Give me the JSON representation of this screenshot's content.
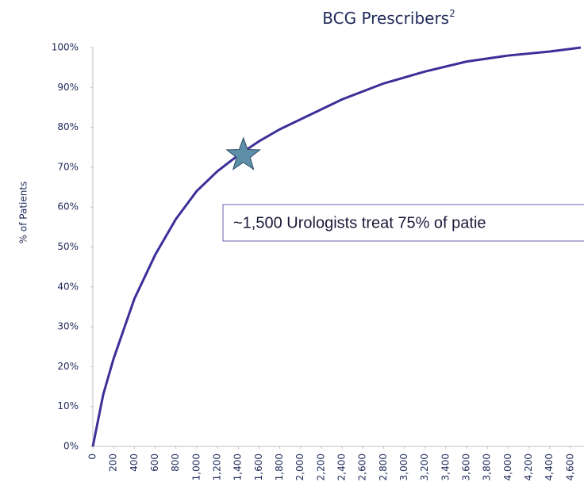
{
  "chart_data": {
    "type": "line",
    "title": "BCG Prescribers",
    "title_note": "2",
    "y_label": "% of Patients",
    "annotation": "~1,500 Urologists treat 75% of patie",
    "x": [
      0,
      100,
      200,
      400,
      600,
      800,
      1000,
      1200,
      1400,
      1600,
      1800,
      2000,
      2400,
      2800,
      3200,
      3600,
      4000,
      4400,
      4700
    ],
    "series": [
      {
        "name": "BCG Prescribers",
        "color": "#3b2f98",
        "values": [
          0,
          13,
          22,
          37,
          48,
          57,
          64,
          69,
          73,
          76.5,
          79.5,
          82,
          87,
          91,
          94,
          96.5,
          98,
          99,
          100
        ]
      }
    ],
    "highlight": {
      "x": 1450,
      "y": 73,
      "color": "#5e8fa8"
    },
    "xlim": [
      0,
      4700
    ],
    "ylim": [
      0,
      100
    ],
    "xticks": [
      0,
      200,
      400,
      600,
      800,
      {
        "value": 1000,
        "label": "1,000"
      },
      {
        "value": 1200,
        "label": "1,200"
      },
      {
        "value": 1400,
        "label": "1,400"
      },
      {
        "value": 1600,
        "label": "1,600"
      },
      {
        "value": 1800,
        "label": "1,800"
      },
      {
        "value": 2000,
        "label": "2,000"
      },
      {
        "value": 2200,
        "label": "2,200"
      },
      {
        "value": 2400,
        "label": "2,400"
      },
      {
        "value": 2600,
        "label": "2,600"
      },
      {
        "value": 2800,
        "label": "2,800"
      },
      {
        "value": 3000,
        "label": "3,000"
      },
      {
        "value": 3200,
        "label": "3,200"
      },
      {
        "value": 3400,
        "label": "3,400"
      },
      {
        "value": 3600,
        "label": "3,600"
      },
      {
        "value": 3800,
        "label": "3,800"
      },
      {
        "value": 4000,
        "label": "4,000"
      },
      {
        "value": 4200,
        "label": "4,200"
      },
      {
        "value": 4400,
        "label": "4,400"
      },
      {
        "value": 4600,
        "label": "4,600"
      }
    ],
    "yticks": [
      {
        "value": 0,
        "label": "0%"
      },
      {
        "value": 10,
        "label": "10%"
      },
      {
        "value": 20,
        "label": "20%"
      },
      {
        "value": 30,
        "label": "30%"
      },
      {
        "value": 40,
        "label": "40%"
      },
      {
        "value": 50,
        "label": "50%"
      },
      {
        "value": 60,
        "label": "60%"
      },
      {
        "value": 70,
        "label": "70%"
      },
      {
        "value": 80,
        "label": "80%"
      },
      {
        "value": 90,
        "label": "90%"
      },
      {
        "value": 100,
        "label": "100%"
      }
    ],
    "grid": false
  }
}
